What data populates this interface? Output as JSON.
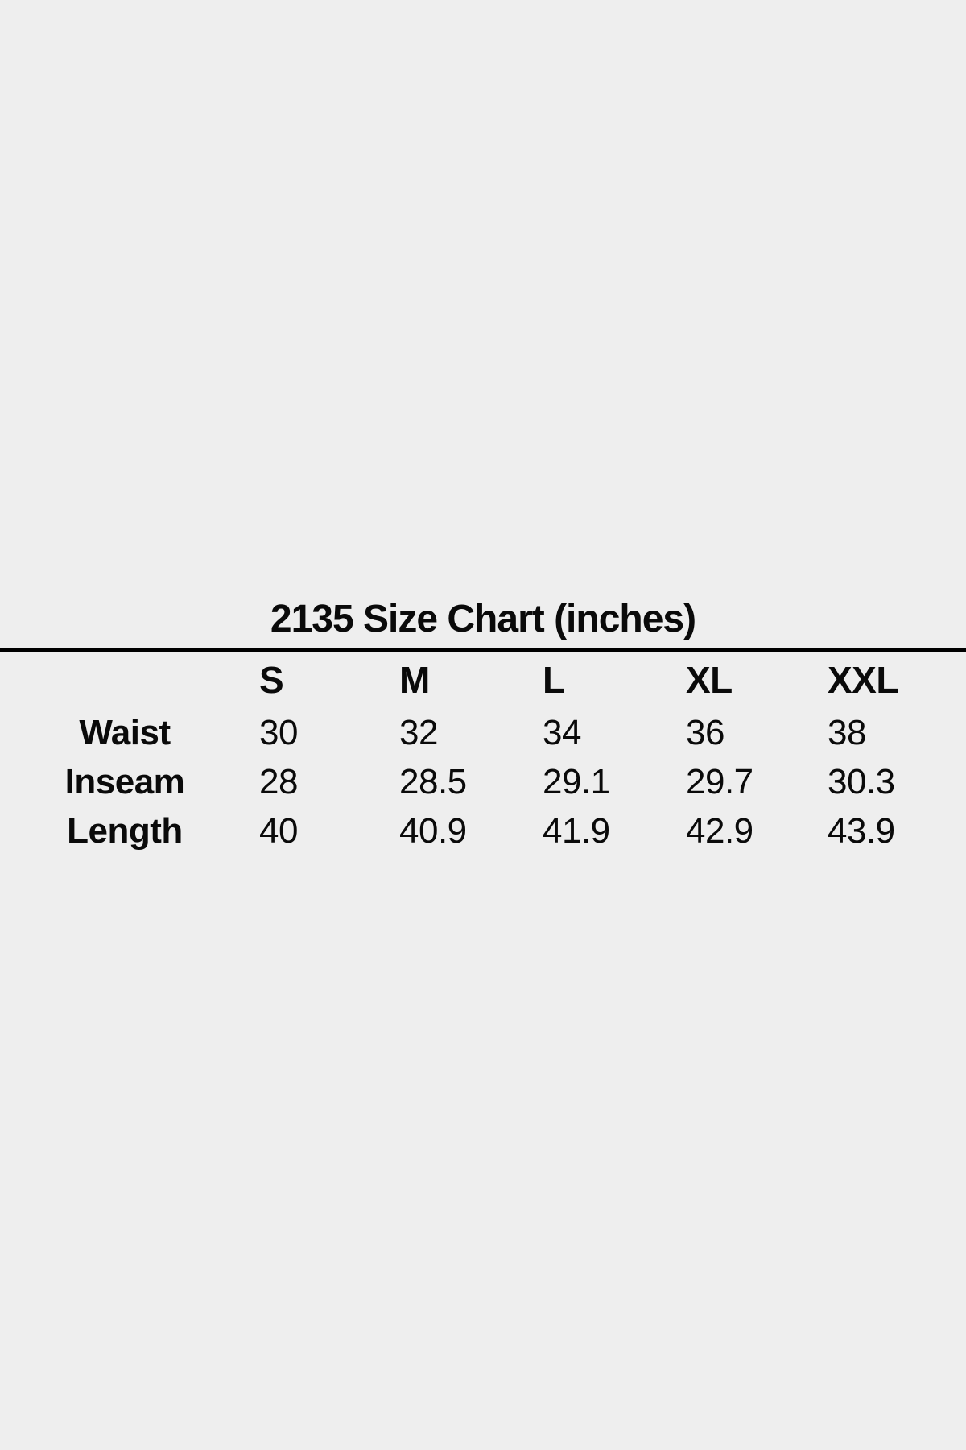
{
  "theme": {
    "background_color": "#eeeeee",
    "text_color": "#0a0a0a",
    "rule_color": "#000000"
  },
  "chart_data": {
    "type": "table",
    "title": "2135 Size Chart (inches)",
    "units": "inches",
    "columns": [
      "S",
      "M",
      "L",
      "XL",
      "XXL"
    ],
    "rows": [
      {
        "label": "Waist",
        "values": [
          "30",
          "32",
          "34",
          "36",
          "38"
        ]
      },
      {
        "label": "Inseam",
        "values": [
          "28",
          "28.5",
          "29.1",
          "29.7",
          "30.3"
        ]
      },
      {
        "label": "Length",
        "values": [
          "40",
          "40.9",
          "41.9",
          "42.9",
          "43.9"
        ]
      }
    ]
  }
}
